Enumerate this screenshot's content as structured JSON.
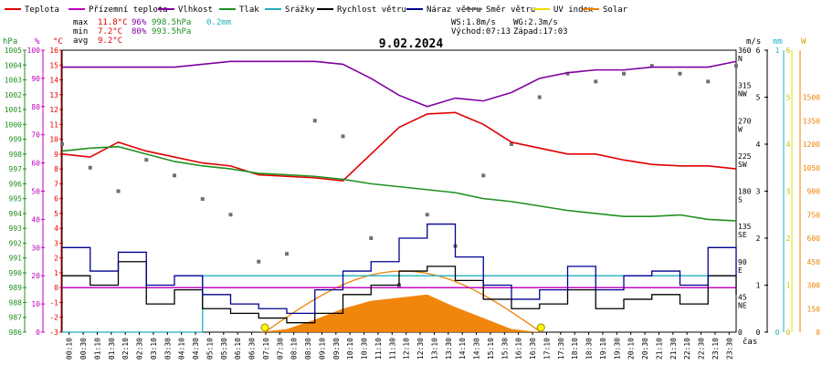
{
  "chart_data": {
    "type": "line",
    "title": "9.02.2024",
    "legend": [
      {
        "label": "Teplota",
        "color": "#e00000"
      },
      {
        "label": "Přízemní teplota",
        "color": "#c000c0"
      },
      {
        "label": "Vlhkost",
        "color": "#8000a0"
      },
      {
        "label": "Tlak",
        "color": "#209020"
      },
      {
        "label": "Srážky",
        "color": "#20b0c0"
      },
      {
        "label": "Rychlost větru",
        "color": "#000000"
      },
      {
        "label": "Náraz větru",
        "color": "#000090"
      },
      {
        "label": "Směr větru",
        "color": "#707070"
      },
      {
        "label": "UV index",
        "color": "#e8e000"
      },
      {
        "label": "Solar",
        "color": "#f08000"
      }
    ],
    "stats": {
      "max_label": "max",
      "max_temp": "11.8°C",
      "max_hum": "96%",
      "max_press": "998.5hPa",
      "max_rain": "0.2mm",
      "min_label": "min",
      "min_temp": "7.2°C",
      "min_hum": "80%",
      "min_press": "993.5hPa",
      "avg_label": "avg",
      "avg_temp": "9.2°C"
    },
    "info": {
      "ws": "WS:1.8m/s",
      "wg": "WG:2.3m/s",
      "sunrise": "Východ:07:13",
      "sunset": "Západ:17:03"
    },
    "axes": {
      "hpa": {
        "unit": "hPa",
        "min": 986,
        "max": 1005,
        "ticks": [
          986,
          987,
          988,
          989,
          990,
          991,
          992,
          993,
          994,
          995,
          996,
          997,
          998,
          999,
          1000,
          1001,
          1002,
          1003,
          1004,
          1005
        ]
      },
      "pct": {
        "unit": "%",
        "min": 0,
        "max": 100,
        "ticks": [
          0,
          10,
          20,
          30,
          40,
          50,
          60,
          70,
          80,
          90,
          100
        ]
      },
      "degc": {
        "unit": "°C",
        "min": -3,
        "max": 16,
        "ticks": [
          -3,
          -2,
          -1,
          0,
          1,
          2,
          3,
          4,
          5,
          6,
          7,
          8,
          9,
          10,
          11,
          12,
          13,
          14,
          15,
          16
        ]
      },
      "dir": {
        "ticks": [
          {
            "v": 0,
            "l": "0"
          },
          {
            "v": 45,
            "l": "45"
          },
          {
            "v": 45,
            "l2": "NE"
          },
          {
            "v": 90,
            "l": "90"
          },
          {
            "v": 90,
            "l2": "E"
          },
          {
            "v": 135,
            "l": "135"
          },
          {
            "v": 135,
            "l2": "SE"
          },
          {
            "v": 180,
            "l": "180"
          },
          {
            "v": 180,
            "l2": "S"
          },
          {
            "v": 225,
            "l": "225"
          },
          {
            "v": 225,
            "l2": "SW"
          },
          {
            "v": 270,
            "l": "270"
          },
          {
            "v": 270,
            "l2": "W"
          },
          {
            "v": 315,
            "l": "315"
          },
          {
            "v": 315,
            "l2": "NW"
          },
          {
            "v": 360,
            "l": "360"
          },
          {
            "v": 360,
            "l2": "N"
          }
        ]
      },
      "ms": {
        "unit": "m/s",
        "min": 0,
        "max": 6,
        "ticks": [
          0,
          1,
          2,
          3,
          4,
          5,
          6
        ]
      },
      "mm": {
        "unit": "mm",
        "min": 0,
        "max": 1,
        "ticks": [
          0,
          1
        ]
      },
      "uv": {
        "unit": "",
        "min": 0,
        "max": 6,
        "ticks": [
          0,
          1,
          2,
          3,
          4,
          5,
          6
        ]
      },
      "w": {
        "unit": "W",
        "min": 0,
        "max": 1800,
        "ticks": [
          0,
          150,
          300,
          450,
          600,
          750,
          900,
          1050,
          1200,
          1350,
          1500
        ]
      },
      "x_label": "čas",
      "x_ticks": [
        "00:10",
        "00:30",
        "01:10",
        "01:30",
        "02:10",
        "02:30",
        "03:10",
        "03:30",
        "04:10",
        "04:30",
        "05:10",
        "05:30",
        "06:10",
        "06:30",
        "07:10",
        "07:30",
        "08:10",
        "08:30",
        "09:10",
        "09:30",
        "10:10",
        "10:30",
        "11:10",
        "11:30",
        "12:10",
        "12:30",
        "13:10",
        "13:30",
        "14:10",
        "14:30",
        "15:10",
        "15:30",
        "16:10",
        "16:30",
        "17:10",
        "17:30",
        "18:10",
        "18:30",
        "19:10",
        "19:30",
        "20:10",
        "20:30",
        "21:10",
        "21:30",
        "22:10",
        "22:30",
        "23:10",
        "23:30"
      ]
    },
    "x_hours": [
      0,
      1,
      2,
      3,
      4,
      5,
      6,
      7,
      8,
      9,
      10,
      11,
      12,
      13,
      14,
      15,
      16,
      17,
      18,
      19,
      20,
      21,
      22,
      23,
      24
    ],
    "series": [
      {
        "name": "Teplota",
        "color": "#e00000",
        "axis": "degc",
        "values": [
          9.0,
          8.8,
          9.8,
          9.2,
          8.8,
          8.4,
          8.2,
          7.6,
          7.5,
          7.4,
          7.2,
          9.0,
          10.8,
          11.7,
          11.8,
          11.0,
          9.8,
          9.4,
          9.0,
          9.0,
          8.6,
          8.3,
          8.2,
          8.2,
          8.0
        ]
      },
      {
        "name": "Přízemní teplota",
        "color": "#c000c0",
        "axis": "degc",
        "values": [
          0,
          0,
          0,
          0,
          0,
          0,
          0,
          0,
          0,
          0,
          0,
          0,
          0,
          0,
          0,
          0,
          0,
          0,
          0,
          0,
          0,
          0,
          0,
          0,
          0
        ]
      },
      {
        "name": "Vlhkost",
        "color": "#8000a0",
        "axis": "pct",
        "values": [
          94,
          94,
          94,
          94,
          94,
          95,
          96,
          96,
          96,
          96,
          95,
          90,
          84,
          80,
          83,
          82,
          85,
          90,
          92,
          93,
          93,
          94,
          94,
          94,
          96
        ]
      },
      {
        "name": "Tlak",
        "color": "#209020",
        "axis": "hpa",
        "values": [
          998.2,
          998.4,
          998.5,
          998.0,
          997.5,
          997.2,
          997.0,
          996.7,
          996.6,
          996.5,
          996.3,
          996.0,
          995.8,
          995.6,
          995.4,
          995.0,
          994.8,
          994.5,
          994.2,
          994.0,
          993.8,
          993.8,
          993.9,
          993.6,
          993.5
        ]
      },
      {
        "name": "Srážky",
        "color": "#20b0c0",
        "axis": "mm",
        "values": [
          0,
          0,
          0,
          0,
          0,
          0.2,
          0.2,
          0.2,
          0.2,
          0.2,
          0.2,
          0.2,
          0.2,
          0.2,
          0.2,
          0.2,
          0.2,
          0.2,
          0.2,
          0.2,
          0.2,
          0.2,
          0.2,
          0.2,
          0.2
        ]
      },
      {
        "name": "Rychlost větru",
        "color": "#000000",
        "axis": "ms",
        "values": [
          1.2,
          1.0,
          1.5,
          0.6,
          0.9,
          0.5,
          0.4,
          0.3,
          0.2,
          0.4,
          0.8,
          1.0,
          1.3,
          1.4,
          1.1,
          0.7,
          0.5,
          0.6,
          0.9,
          0.5,
          0.7,
          0.8,
          0.6,
          1.2,
          0.8
        ]
      },
      {
        "name": "Náraz větru",
        "color": "#000090",
        "axis": "ms",
        "values": [
          1.8,
          1.3,
          1.7,
          1.0,
          1.2,
          0.8,
          0.6,
          0.5,
          0.4,
          0.9,
          1.3,
          1.5,
          2.0,
          2.3,
          1.6,
          1.0,
          0.7,
          0.9,
          1.4,
          0.9,
          1.2,
          1.3,
          1.0,
          1.8,
          1.2
        ]
      },
      {
        "name": "Solar",
        "color": "#f08000",
        "axis": "w",
        "values": [
          0,
          0,
          0,
          0,
          0,
          0,
          0,
          0,
          20,
          80,
          150,
          200,
          220,
          240,
          160,
          90,
          20,
          0,
          0,
          0,
          0,
          0,
          0,
          0,
          0
        ]
      }
    ],
    "wind_direction": {
      "name": "Směr větru",
      "axis": "dir",
      "values": [
        240,
        210,
        180,
        220,
        200,
        170,
        150,
        90,
        100,
        270,
        250,
        120,
        60,
        150,
        110,
        200,
        240,
        300,
        330,
        320,
        330,
        340,
        330,
        320,
        340
      ]
    },
    "sun_markers": {
      "sunrise_hour": 7.22,
      "sunset_hour": 17.05
    },
    "grid": false
  }
}
